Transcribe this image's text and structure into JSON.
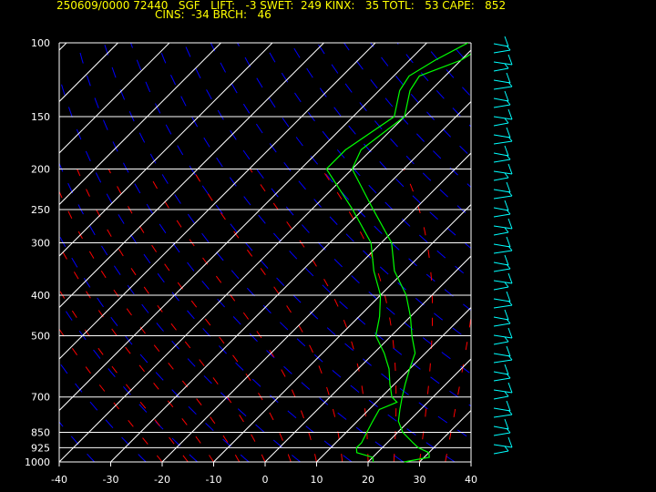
{
  "header": {
    "line1": "250609/0000 72440   SGF   LIFT:   -3 SWET:  249 KINX:   35 TOTL:   53 CAPE:   852",
    "line2": "CINS:  -34 BRCH:   46"
  },
  "colors": {
    "background": "#000000",
    "header_text": "#ffff00",
    "axis_text": "#ffffff",
    "isobar": "#ffffff",
    "isotherm": "#ffffff",
    "dry_adiabat": "#0000ff",
    "moist_adiabat": "#ff0000",
    "profile": "#00ff00",
    "wind_barbs": "#00ffff"
  },
  "chart_data": {
    "type": "line",
    "chart_kind": "skew-T log-P sounding",
    "station": "SGF",
    "xlim": [
      -40,
      40
    ],
    "x_ticks": [
      "-40",
      "-30",
      "-20",
      "-10",
      "0",
      "10",
      "20",
      "30",
      "40"
    ],
    "pressure_ticks": [
      "100",
      "150",
      "200",
      "250",
      "300",
      "400",
      "500",
      "700",
      "850",
      "925",
      "1000"
    ],
    "ylim_pressure": [
      1000,
      100
    ],
    "y_scale": "log",
    "grid": true,
    "series": [
      {
        "kind": "temperature",
        "points": [
          [
            1000,
            27
          ],
          [
            975,
            31
          ],
          [
            950,
            30
          ],
          [
            925,
            27
          ],
          [
            900,
            25
          ],
          [
            850,
            21
          ],
          [
            800,
            18
          ],
          [
            750,
            16
          ],
          [
            700,
            14
          ],
          [
            650,
            12
          ],
          [
            600,
            10
          ],
          [
            550,
            8
          ],
          [
            500,
            4
          ],
          [
            450,
            0
          ],
          [
            400,
            -5
          ],
          [
            350,
            -12
          ],
          [
            300,
            -18
          ],
          [
            250,
            -28
          ],
          [
            200,
            -40
          ],
          [
            180,
            -42
          ],
          [
            150,
            -40
          ],
          [
            130,
            -44
          ],
          [
            120,
            -45
          ],
          [
            110,
            -40
          ],
          [
            100,
            -38
          ]
        ]
      },
      {
        "kind": "dewpoint",
        "points": [
          [
            1000,
            21
          ],
          [
            975,
            20
          ],
          [
            950,
            16
          ],
          [
            925,
            15
          ],
          [
            900,
            15
          ],
          [
            850,
            14
          ],
          [
            800,
            13
          ],
          [
            750,
            12
          ],
          [
            720,
            14
          ],
          [
            700,
            12
          ],
          [
            650,
            9
          ],
          [
            600,
            6
          ],
          [
            550,
            2
          ],
          [
            500,
            -3
          ],
          [
            450,
            -6
          ],
          [
            400,
            -10
          ],
          [
            350,
            -16
          ],
          [
            300,
            -22
          ],
          [
            250,
            -32
          ],
          [
            200,
            -45
          ],
          [
            180,
            -45
          ],
          [
            150,
            -42
          ],
          [
            130,
            -46
          ],
          [
            120,
            -47
          ],
          [
            110,
            -45
          ],
          [
            100,
            -42
          ]
        ]
      }
    ]
  }
}
